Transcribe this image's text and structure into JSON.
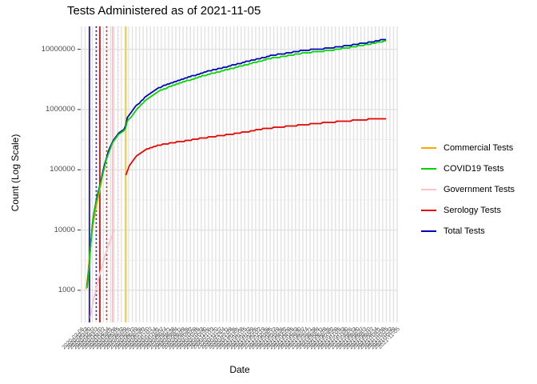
{
  "title": "Tests Administered as of 2021-11-05",
  "x_axis": {
    "title": "Date",
    "labels": [
      "2020-03-06",
      "2020-03-13",
      "2020-03-20",
      "2020-03-27",
      "2020-04-03",
      "2020-04-10",
      "2020-04-17",
      "2020-04-24",
      "2020-05-01",
      "2020-05-08",
      "2020-05-15",
      "2020-05-22",
      "2020-05-29",
      "2020-06-05",
      "2020-06-12",
      "2020-06-19",
      "2020-06-26",
      "2020-07-03",
      "2020-07-10",
      "2020-07-17",
      "2020-07-24",
      "2020-07-31",
      "2020-08-07",
      "2020-08-14",
      "2020-08-21",
      "2020-08-28",
      "2020-09-04",
      "2020-09-11",
      "2020-09-18",
      "2020-09-25",
      "2020-10-02",
      "2020-10-09",
      "2020-10-16",
      "2020-10-23",
      "2020-10-30",
      "2020-11-06",
      "2020-11-13",
      "2020-11-20",
      "2020-11-27",
      "2020-12-04",
      "2020-12-11",
      "2020-12-18",
      "2020-12-25",
      "2021-01-01",
      "2021-01-08",
      "2021-01-15",
      "2021-01-22",
      "2021-01-29",
      "2021-02-05",
      "2021-02-12",
      "2021-02-19",
      "2021-02-26",
      "2021-03-05",
      "2021-03-12",
      "2021-03-19",
      "2021-03-26",
      "2021-04-02",
      "2021-04-09",
      "2021-04-16",
      "2021-04-23",
      "2021-04-30",
      "2021-05-07",
      "2021-05-14",
      "2021-05-21",
      "2021-05-28",
      "2021-06-04",
      "2021-06-11",
      "2021-06-18",
      "2021-06-25",
      "2021-07-02",
      "2021-07-09",
      "2021-07-16",
      "2021-07-23",
      "2021-07-30",
      "2021-08-06",
      "2021-08-13",
      "2021-08-20",
      "2021-08-27",
      "2021-09-03",
      "2021-09-10",
      "2021-09-17",
      "2021-09-24",
      "2021-10-01",
      "2021-10-08",
      "2021-10-15",
      "2021-10-22",
      "2021-10-29",
      "2021-11-05"
    ]
  },
  "y_axis": {
    "title": "Count (Log Scale)",
    "tick_values": [
      1000,
      10000,
      100000,
      1000000,
      10000000
    ],
    "tick_labels": [
      "1000",
      "10000",
      "100000",
      "1000000",
      "10000000"
    ]
  },
  "legend": {
    "items": [
      {
        "label": "Commercial Tests",
        "color": "#FFA500"
      },
      {
        "label": "COVID19 Tests",
        "color": "#00D500"
      },
      {
        "label": "Government Tests",
        "color": "#FFC0CB"
      },
      {
        "label": "Serology Tests",
        "color": "#E60000"
      },
      {
        "label": "Total Tests",
        "color": "#0000B8"
      }
    ]
  },
  "chart_data": {
    "type": "line",
    "title": "Tests Administered as of 2021-11-05",
    "xlabel": "Date",
    "ylabel": "Count (Log Scale)",
    "y_scale": "log10",
    "ylim": [
      330,
      24000000
    ],
    "grid": "on",
    "legend_position": "right",
    "colors": {
      "grid_major": "#e2e2e2",
      "grid_minor": "#ececec",
      "tick_text": "#4d4d4d"
    },
    "minor_gridline_logs": [
      3.5,
      4.5,
      5.5,
      6.5
    ],
    "vlines": [
      {
        "name": "total-solid",
        "color": "#1414C8",
        "style": "solid",
        "x": 0.0253
      },
      {
        "name": "total-dotted",
        "color": "#00008B",
        "style": "dotted",
        "x": 0.0468
      },
      {
        "name": "serology-solid",
        "color": "#DD0000",
        "style": "solid",
        "x": 0.0582
      },
      {
        "name": "serology-dotted",
        "color": "#CC0000",
        "style": "dotted",
        "x": 0.0797
      },
      {
        "name": "government-solid",
        "color": "#FFB6C1",
        "style": "solid",
        "x": 0.0987
      },
      {
        "name": "government-dotted",
        "color": "#FFD0D9",
        "style": "dotted",
        "x": 0.1165
      },
      {
        "name": "commercial-solid",
        "color": "#FFC800",
        "style": "solid",
        "x": 0.1405
      }
    ],
    "series": [
      {
        "name": "Commercial Tests",
        "color": "#FFA500",
        "points": [
          [
            0.0152,
            1050
          ],
          [
            0.02,
            1800
          ],
          [
            0.025,
            3500
          ],
          [
            0.03,
            6500
          ],
          [
            0.0375,
            13000
          ],
          [
            0.045,
            22000
          ],
          [
            0.052,
            33000
          ],
          [
            0.059,
            48000
          ],
          [
            0.0658,
            80000
          ]
        ]
      },
      {
        "name": "Total Tests",
        "color": "#0000B8",
        "points": [
          [
            0.0177,
            1200
          ],
          [
            0.0228,
            2000
          ],
          [
            0.0278,
            5000
          ],
          [
            0.0304,
            7400
          ],
          [
            0.0354,
            14000
          ],
          [
            0.0405,
            21000
          ],
          [
            0.0481,
            33000
          ],
          [
            0.0582,
            57000
          ],
          [
            0.0683,
            95000
          ],
          [
            0.0759,
            140000
          ],
          [
            0.0861,
            205000
          ],
          [
            0.0987,
            300000
          ],
          [
            0.1139,
            390000
          ],
          [
            0.1291,
            455000
          ],
          [
            0.1392,
            490000
          ],
          [
            0.1405,
            700000
          ],
          [
            0.1519,
            810000
          ],
          [
            0.1722,
            1130000
          ],
          [
            0.1975,
            1530000
          ],
          [
            0.2228,
            1950000
          ],
          [
            0.2481,
            2340000
          ],
          [
            0.2734,
            2650000
          ],
          [
            0.3114,
            3080000
          ],
          [
            0.3494,
            3590000
          ],
          [
            0.4,
            4300000
          ],
          [
            0.4506,
            5000000
          ],
          [
            0.5013,
            5840000
          ],
          [
            0.5519,
            6800000
          ],
          [
            0.6025,
            7900000
          ],
          [
            0.6532,
            8700000
          ],
          [
            0.7038,
            9600000
          ],
          [
            0.7544,
            10100000
          ],
          [
            0.8051,
            10800000
          ],
          [
            0.8557,
            11800000
          ],
          [
            0.9063,
            12900000
          ],
          [
            0.9443,
            14100000
          ],
          [
            0.9646,
            14700000
          ]
        ]
      },
      {
        "name": "COVID19 Tests",
        "color": "#00D500",
        "points": [
          [
            0.0177,
            1100
          ],
          [
            0.0228,
            1900
          ],
          [
            0.0278,
            4800
          ],
          [
            0.0304,
            7000
          ],
          [
            0.0354,
            13500
          ],
          [
            0.0405,
            20000
          ],
          [
            0.0481,
            31000
          ],
          [
            0.0582,
            54000
          ],
          [
            0.0683,
            90000
          ],
          [
            0.0759,
            132000
          ],
          [
            0.0861,
            192000
          ],
          [
            0.0987,
            280000
          ],
          [
            0.1139,
            365000
          ],
          [
            0.1291,
            430000
          ],
          [
            0.1392,
            465000
          ],
          [
            0.1405,
            600000
          ],
          [
            0.1519,
            700000
          ],
          [
            0.1722,
            980000
          ],
          [
            0.1975,
            1330000
          ],
          [
            0.2228,
            1700000
          ],
          [
            0.2481,
            2050000
          ],
          [
            0.2734,
            2330000
          ],
          [
            0.3114,
            2720000
          ],
          [
            0.3494,
            3180000
          ],
          [
            0.4,
            3820000
          ],
          [
            0.4506,
            4450000
          ],
          [
            0.5013,
            5220000
          ],
          [
            0.5519,
            6100000
          ],
          [
            0.6025,
            7100000
          ],
          [
            0.6532,
            7800000
          ],
          [
            0.7038,
            8700000
          ],
          [
            0.7544,
            9200000
          ],
          [
            0.8051,
            9900000
          ],
          [
            0.8557,
            10900000
          ],
          [
            0.9063,
            12000000
          ],
          [
            0.9443,
            13200000
          ],
          [
            0.9646,
            13800000
          ]
        ]
      },
      {
        "name": "Government Tests",
        "color": "#FFC0CB",
        "points": [
          [
            0.0278,
            350
          ],
          [
            0.0354,
            600
          ],
          [
            0.043,
            900
          ],
          [
            0.0532,
            1500
          ],
          [
            0.0633,
            2300
          ],
          [
            0.0734,
            3600
          ],
          [
            0.0835,
            5200
          ],
          [
            0.0937,
            7300
          ],
          [
            0.1038,
            10200
          ]
        ]
      },
      {
        "name": "Serology Tests",
        "color": "#E60000",
        "points": [
          [
            0.1405,
            82000
          ],
          [
            0.1494,
            110000
          ],
          [
            0.1595,
            135000
          ],
          [
            0.1772,
            175000
          ],
          [
            0.2,
            215000
          ],
          [
            0.2354,
            250000
          ],
          [
            0.2734,
            272000
          ],
          [
            0.3241,
            300000
          ],
          [
            0.3747,
            330000
          ],
          [
            0.4253,
            360000
          ],
          [
            0.4759,
            390000
          ],
          [
            0.5266,
            430000
          ],
          [
            0.5772,
            480000
          ],
          [
            0.6405,
            520000
          ],
          [
            0.7038,
            560000
          ],
          [
            0.767,
            600000
          ],
          [
            0.8304,
            640000
          ],
          [
            0.8937,
            680000
          ],
          [
            0.9646,
            710000
          ]
        ]
      }
    ]
  }
}
